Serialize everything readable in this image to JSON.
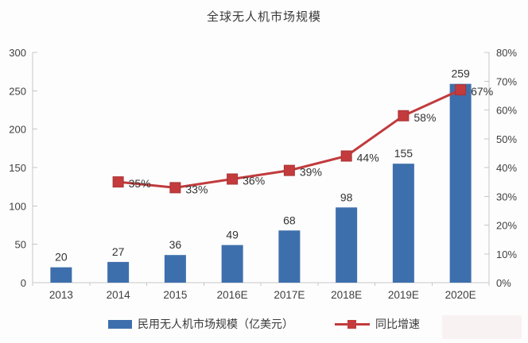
{
  "title": "全球无人机市场规模",
  "legend": {
    "bar_label": "民用无人机市场规模（亿美元）",
    "line_label": "同比增速"
  },
  "colors": {
    "bar": "#3e6fad",
    "line": "#c13b3d",
    "marker": "#c33b3c",
    "marker_edge": "#a93335",
    "axis": "#c6c6c6",
    "text": "#3f3f3f",
    "label": "#333333"
  },
  "chart_data": {
    "type": "bar",
    "subtype": "bar+line combo, dual axis",
    "title": "全球无人机市场规模",
    "categories": [
      "2013",
      "2014",
      "2015",
      "2016E",
      "2017E",
      "2018E",
      "2019E",
      "2020E"
    ],
    "series": [
      {
        "name": "民用无人机市场规模（亿美元）",
        "type": "bar",
        "axis": "left",
        "values": [
          20,
          27,
          36,
          49,
          68,
          98,
          155,
          259
        ]
      },
      {
        "name": "同比增速",
        "type": "line",
        "axis": "right",
        "unit": "%",
        "values": [
          null,
          35,
          33,
          36,
          39,
          44,
          58,
          67
        ],
        "data_labels": [
          "",
          "35%",
          "33%",
          "36%",
          "39%",
          "44%",
          "58%",
          "67%"
        ]
      }
    ],
    "left_axis": {
      "min": 0,
      "max": 300,
      "step": 50,
      "ticks": [
        "0",
        "50",
        "100",
        "150",
        "200",
        "250",
        "300"
      ]
    },
    "right_axis": {
      "min": 0,
      "max": 80,
      "step": 10,
      "ticks": [
        "0%",
        "10%",
        "20%",
        "30%",
        "40%",
        "50%",
        "60%",
        "70%",
        "80%"
      ]
    },
    "grid": false,
    "legend_position": "bottom",
    "xlabel": "",
    "ylabel_left": "",
    "ylabel_right": ""
  }
}
